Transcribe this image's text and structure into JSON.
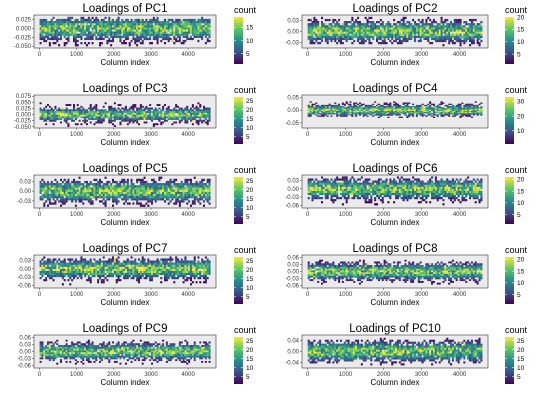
{
  "chart_data": [
    {
      "type": "heatmap",
      "title": "Loadings of PC1",
      "xlabel": "Column index",
      "ylabel": "",
      "xlim": [
        -150,
        4750
      ],
      "x_ticks": [
        "0",
        "1000",
        "2000",
        "3000",
        "4000"
      ],
      "x_tick_values": [
        0,
        1000,
        2000,
        3000,
        4000
      ],
      "ylim": [
        -0.055,
        0.038
      ],
      "y_ticks": [
        "0.025",
        "0.000",
        "-0.025",
        "-0.050"
      ],
      "y_tick_values": [
        0.025,
        0,
        -0.025,
        -0.05
      ],
      "data_x_range": [
        0,
        4600
      ],
      "data_y_range": [
        -0.05,
        0.033
      ],
      "density_center": 0.0,
      "density_spread": 0.018,
      "legend": {
        "title": "count",
        "placement": "right",
        "labels": [
          "15",
          "10",
          "5"
        ],
        "label_values": [
          15,
          10,
          5
        ],
        "range": [
          1,
          19
        ]
      },
      "colors": [
        "#440154",
        "#3b528b",
        "#21918c",
        "#5ec962",
        "#fde725"
      ],
      "grid": false
    },
    {
      "type": "heatmap",
      "title": "Loadings of PC2",
      "xlabel": "Column index",
      "ylabel": "",
      "xlim": [
        -150,
        4750
      ],
      "x_ticks": [
        "0",
        "1000",
        "2000",
        "3000",
        "4000"
      ],
      "x_tick_values": [
        0,
        1000,
        2000,
        3000,
        4000
      ],
      "ylim": [
        -0.045,
        0.045
      ],
      "y_ticks": [
        "0.03",
        "0.00",
        "-0.03"
      ],
      "y_tick_values": [
        0.03,
        0,
        -0.03
      ],
      "data_x_range": [
        0,
        4600
      ],
      "data_y_range": [
        -0.04,
        0.04
      ],
      "density_center": 0.0,
      "density_spread": 0.016,
      "legend": {
        "title": "count",
        "placement": "right",
        "labels": [
          "20",
          "15",
          "10",
          "5"
        ],
        "label_values": [
          20,
          15,
          10,
          5
        ],
        "range": [
          1,
          20
        ]
      },
      "colors": [
        "#440154",
        "#3b528b",
        "#21918c",
        "#5ec962",
        "#fde725"
      ],
      "grid": false
    },
    {
      "type": "heatmap",
      "title": "Loadings of PC3",
      "xlabel": "Column index",
      "ylabel": "",
      "xlim": [
        -150,
        4750
      ],
      "x_ticks": [
        "0",
        "1000",
        "2000",
        "3000",
        "4000"
      ],
      "x_tick_values": [
        0,
        1000,
        2000,
        3000,
        4000
      ],
      "ylim": [
        -0.055,
        0.08
      ],
      "y_ticks": [
        "0.075",
        "0.050",
        "0.025",
        "0.000",
        "-0.025",
        "-0.050"
      ],
      "y_tick_values": [
        0.075,
        0.05,
        0.025,
        0,
        -0.025,
        -0.05
      ],
      "data_x_range": [
        0,
        4600
      ],
      "data_y_range": [
        -0.05,
        0.05
      ],
      "density_center": 0.0,
      "density_spread": 0.015,
      "legend": {
        "title": "count",
        "placement": "right",
        "labels": [
          "25",
          "20",
          "15",
          "10",
          "5"
        ],
        "label_values": [
          25,
          20,
          15,
          10,
          5
        ],
        "range": [
          1,
          27
        ]
      },
      "colors": [
        "#440154",
        "#3b528b",
        "#21918c",
        "#5ec962",
        "#fde725"
      ],
      "grid": false
    },
    {
      "type": "heatmap",
      "title": "Loadings of PC4",
      "xlabel": "Column index",
      "ylabel": "",
      "xlim": [
        -150,
        4750
      ],
      "x_ticks": [
        "0",
        "1000",
        "2000",
        "3000",
        "4000"
      ],
      "x_tick_values": [
        0,
        1000,
        2000,
        3000,
        4000
      ],
      "ylim": [
        -0.07,
        0.06
      ],
      "y_ticks": [
        "0.05",
        "0.00",
        "-0.05"
      ],
      "y_tick_values": [
        0.05,
        0,
        -0.05
      ],
      "data_x_range": [
        0,
        4600
      ],
      "data_y_range": [
        -0.03,
        0.035
      ],
      "density_center": 0.0,
      "density_spread": 0.012,
      "legend": {
        "title": "count",
        "placement": "right",
        "labels": [
          "30",
          "20",
          "10"
        ],
        "label_values": [
          30,
          20,
          10
        ],
        "range": [
          1,
          33
        ]
      },
      "colors": [
        "#440154",
        "#3b528b",
        "#21918c",
        "#5ec962",
        "#fde725"
      ],
      "grid": false
    },
    {
      "type": "heatmap",
      "title": "Loadings of PC5",
      "xlabel": "Column index",
      "ylabel": "",
      "xlim": [
        -150,
        4750
      ],
      "x_ticks": [
        "0",
        "1000",
        "2000",
        "3000",
        "4000"
      ],
      "x_tick_values": [
        0,
        1000,
        2000,
        3000,
        4000
      ],
      "ylim": [
        -0.052,
        0.05
      ],
      "y_ticks": [
        "0.03",
        "0.00",
        "-0.03"
      ],
      "y_tick_values": [
        0.03,
        0,
        -0.03
      ],
      "data_x_range": [
        0,
        4600
      ],
      "data_y_range": [
        -0.048,
        0.045
      ],
      "density_center": 0.0,
      "density_spread": 0.018,
      "legend": {
        "title": "count",
        "placement": "right",
        "labels": [
          "25",
          "20",
          "15",
          "10",
          "5"
        ],
        "label_values": [
          25,
          20,
          15,
          10,
          5
        ],
        "range": [
          1,
          27
        ]
      },
      "colors": [
        "#440154",
        "#3b528b",
        "#21918c",
        "#5ec962",
        "#fde725"
      ],
      "grid": false
    },
    {
      "type": "heatmap",
      "title": "Loadings of PC6",
      "xlabel": "Column index",
      "ylabel": "",
      "xlim": [
        -150,
        4750
      ],
      "x_ticks": [
        "0",
        "1000",
        "2000",
        "3000",
        "4000"
      ],
      "x_tick_values": [
        0,
        1000,
        2000,
        3000,
        4000
      ],
      "ylim": [
        -0.07,
        0.05
      ],
      "y_ticks": [
        "0.03",
        "0.00",
        "-0.03",
        "-0.06"
      ],
      "y_tick_values": [
        0.03,
        0,
        -0.03,
        -0.06
      ],
      "data_x_range": [
        0,
        4600
      ],
      "data_y_range": [
        -0.06,
        0.045
      ],
      "density_center": 0.0,
      "density_spread": 0.02,
      "legend": {
        "title": "count",
        "placement": "right",
        "labels": [
          "20",
          "15",
          "10",
          "5"
        ],
        "label_values": [
          20,
          15,
          10,
          5
        ],
        "range": [
          1,
          21
        ]
      },
      "colors": [
        "#440154",
        "#3b528b",
        "#21918c",
        "#5ec962",
        "#fde725"
      ],
      "grid": false
    },
    {
      "type": "heatmap",
      "title": "Loadings of PC7",
      "xlabel": "Column index",
      "ylabel": "",
      "xlim": [
        -150,
        4750
      ],
      "x_ticks": [
        "0",
        "1000",
        "2000",
        "3000",
        "4000"
      ],
      "x_tick_values": [
        0,
        1000,
        2000,
        3000,
        4000
      ],
      "ylim": [
        -0.07,
        0.05
      ],
      "y_ticks": [
        "0.03",
        "0.00",
        "-0.03",
        "-0.06"
      ],
      "y_tick_values": [
        0.03,
        0,
        -0.03,
        -0.06
      ],
      "data_x_range": [
        0,
        4600
      ],
      "data_y_range": [
        -0.06,
        0.045
      ],
      "density_center": 0.0,
      "density_spread": 0.02,
      "legend": {
        "title": "count",
        "placement": "right",
        "labels": [
          "25",
          "20",
          "15",
          "10",
          "5"
        ],
        "label_values": [
          25,
          20,
          15,
          10,
          5
        ],
        "range": [
          1,
          27
        ]
      },
      "colors": [
        "#440154",
        "#3b528b",
        "#21918c",
        "#5ec962",
        "#fde725"
      ],
      "grid": false
    },
    {
      "type": "heatmap",
      "title": "Loadings of PC8",
      "xlabel": "Column index",
      "ylabel": "",
      "xlim": [
        -150,
        4750
      ],
      "x_ticks": [
        "0",
        "1000",
        "2000",
        "3000",
        "4000"
      ],
      "x_tick_values": [
        0,
        1000,
        2000,
        3000,
        4000
      ],
      "ylim": [
        -0.07,
        0.07
      ],
      "y_ticks": [
        "0.06",
        "0.03",
        "0.00",
        "-0.03",
        "-0.06"
      ],
      "y_tick_values": [
        0.06,
        0.03,
        0,
        -0.03,
        -0.06
      ],
      "data_x_range": [
        0,
        4600
      ],
      "data_y_range": [
        -0.055,
        0.05
      ],
      "density_center": 0.0,
      "density_spread": 0.02,
      "legend": {
        "title": "count",
        "placement": "right",
        "labels": [
          "20",
          "15",
          "10",
          "5"
        ],
        "label_values": [
          20,
          15,
          10,
          5
        ],
        "range": [
          1,
          21
        ]
      },
      "colors": [
        "#440154",
        "#3b528b",
        "#21918c",
        "#5ec962",
        "#fde725"
      ],
      "grid": false
    },
    {
      "type": "heatmap",
      "title": "Loadings of PC9",
      "xlabel": "Column index",
      "ylabel": "",
      "xlim": [
        -150,
        4750
      ],
      "x_ticks": [
        "0",
        "1000",
        "2000",
        "3000",
        "4000"
      ],
      "x_tick_values": [
        0,
        1000,
        2000,
        3000,
        4000
      ],
      "ylim": [
        -0.07,
        0.07
      ],
      "y_ticks": [
        "0.06",
        "0.03",
        "0.00",
        "-0.03",
        "-0.06"
      ],
      "y_tick_values": [
        0.06,
        0.03,
        0,
        -0.03,
        -0.06
      ],
      "data_x_range": [
        0,
        4600
      ],
      "data_y_range": [
        -0.055,
        0.05
      ],
      "density_center": 0.0,
      "density_spread": 0.02,
      "legend": {
        "title": "count",
        "placement": "right",
        "labels": [
          "25",
          "20",
          "15",
          "10",
          "5"
        ],
        "label_values": [
          25,
          20,
          15,
          10,
          5
        ],
        "range": [
          1,
          27
        ]
      },
      "colors": [
        "#440154",
        "#3b528b",
        "#21918c",
        "#5ec962",
        "#fde725"
      ],
      "grid": false
    },
    {
      "type": "heatmap",
      "title": "Loadings of PC10",
      "xlabel": "Column index",
      "ylabel": "",
      "xlim": [
        -150,
        4750
      ],
      "x_ticks": [
        "0",
        "1000",
        "2000",
        "3000",
        "4000"
      ],
      "x_tick_values": [
        0,
        1000,
        2000,
        3000,
        4000
      ],
      "ylim": [
        -0.06,
        0.06
      ],
      "y_ticks": [
        "0.04",
        "0.00",
        "-0.04"
      ],
      "y_tick_values": [
        0.04,
        0,
        -0.04
      ],
      "data_x_range": [
        0,
        4600
      ],
      "data_y_range": [
        -0.05,
        0.05
      ],
      "density_center": 0.0,
      "density_spread": 0.02,
      "legend": {
        "title": "count",
        "placement": "right",
        "labels": [
          "25",
          "20",
          "15",
          "10",
          "5"
        ],
        "label_values": [
          25,
          20,
          15,
          10,
          5
        ],
        "range": [
          1,
          27
        ]
      },
      "colors": [
        "#440154",
        "#3b528b",
        "#21918c",
        "#5ec962",
        "#fde725"
      ],
      "grid": false
    }
  ]
}
